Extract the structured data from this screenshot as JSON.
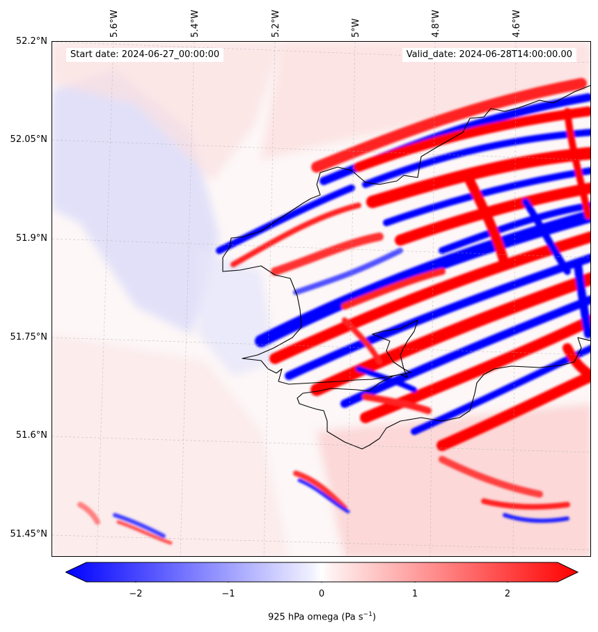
{
  "header": {
    "start_date": "Start date: 2024-06-27_00:00:00",
    "valid_date": "Valid_date: 2024-06-28T14:00:00.00"
  },
  "axes": {
    "longitude_labels": [
      "5.6°W",
      "5.4°W",
      "5.2°W",
      "5°W",
      "4.8°W",
      "4.6°W"
    ],
    "latitude_labels": [
      "52.2°N",
      "52.05°N",
      "51.9°N",
      "51.75°N",
      "51.6°N",
      "51.45°N"
    ]
  },
  "colorbar": {
    "ticks": [
      "−2",
      "−1",
      "0",
      "1",
      "2"
    ],
    "label_prefix": "925 hPa omega (Pa s",
    "label_sup": "−1",
    "label_suffix": ")",
    "min": -2.5,
    "max": 2.5,
    "colors": {
      "negative": "#0000ff",
      "zero": "#ffffff",
      "positive": "#ff0000"
    }
  }
}
